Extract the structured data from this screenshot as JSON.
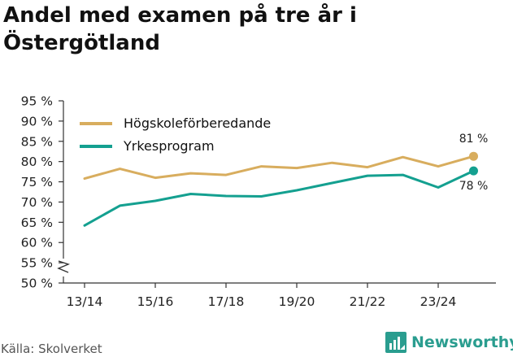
{
  "title": "Andel med examen på tre år i Östergötland",
  "source": "Källa: Skolverket",
  "logo_text": "Newsworthy",
  "colors": {
    "series_1": "#d8ad5e",
    "series_2": "#14a090",
    "brand": "#2a9d8f"
  },
  "chart_data": {
    "type": "line",
    "title": "Andel med examen på tre år i Östergötland",
    "x": [
      "13/14",
      "14/15",
      "15/16",
      "16/17",
      "17/18",
      "18/19",
      "19/20",
      "20/21",
      "21/22",
      "22/23",
      "23/24",
      "24/25"
    ],
    "x_tick_labels": [
      "13/14",
      "15/16",
      "17/18",
      "19/20",
      "21/22",
      "23/24"
    ],
    "series": [
      {
        "name": "Högskoleförberedande",
        "values": [
          75.8,
          78.2,
          76.0,
          77.1,
          76.7,
          78.8,
          78.4,
          79.7,
          78.6,
          81.1,
          78.8,
          81.3
        ],
        "end_label": "81 %"
      },
      {
        "name": "Yrkesprogram",
        "values": [
          64.2,
          69.1,
          70.3,
          72.0,
          71.5,
          71.4,
          72.9,
          74.7,
          76.5,
          76.7,
          73.6,
          77.7
        ],
        "end_label": "78 %"
      }
    ],
    "y_ticks": [
      50,
      55,
      60,
      65,
      70,
      75,
      80,
      85,
      90,
      95
    ],
    "y_tick_labels": [
      "50 %",
      "55 %",
      "60 %",
      "65 %",
      "70 %",
      "75 %",
      "80 %",
      "85 %",
      "90 %",
      "95 %"
    ],
    "ylim": [
      50,
      95
    ],
    "y_axis_break": true,
    "grid": false,
    "legend_position": "top-left"
  }
}
